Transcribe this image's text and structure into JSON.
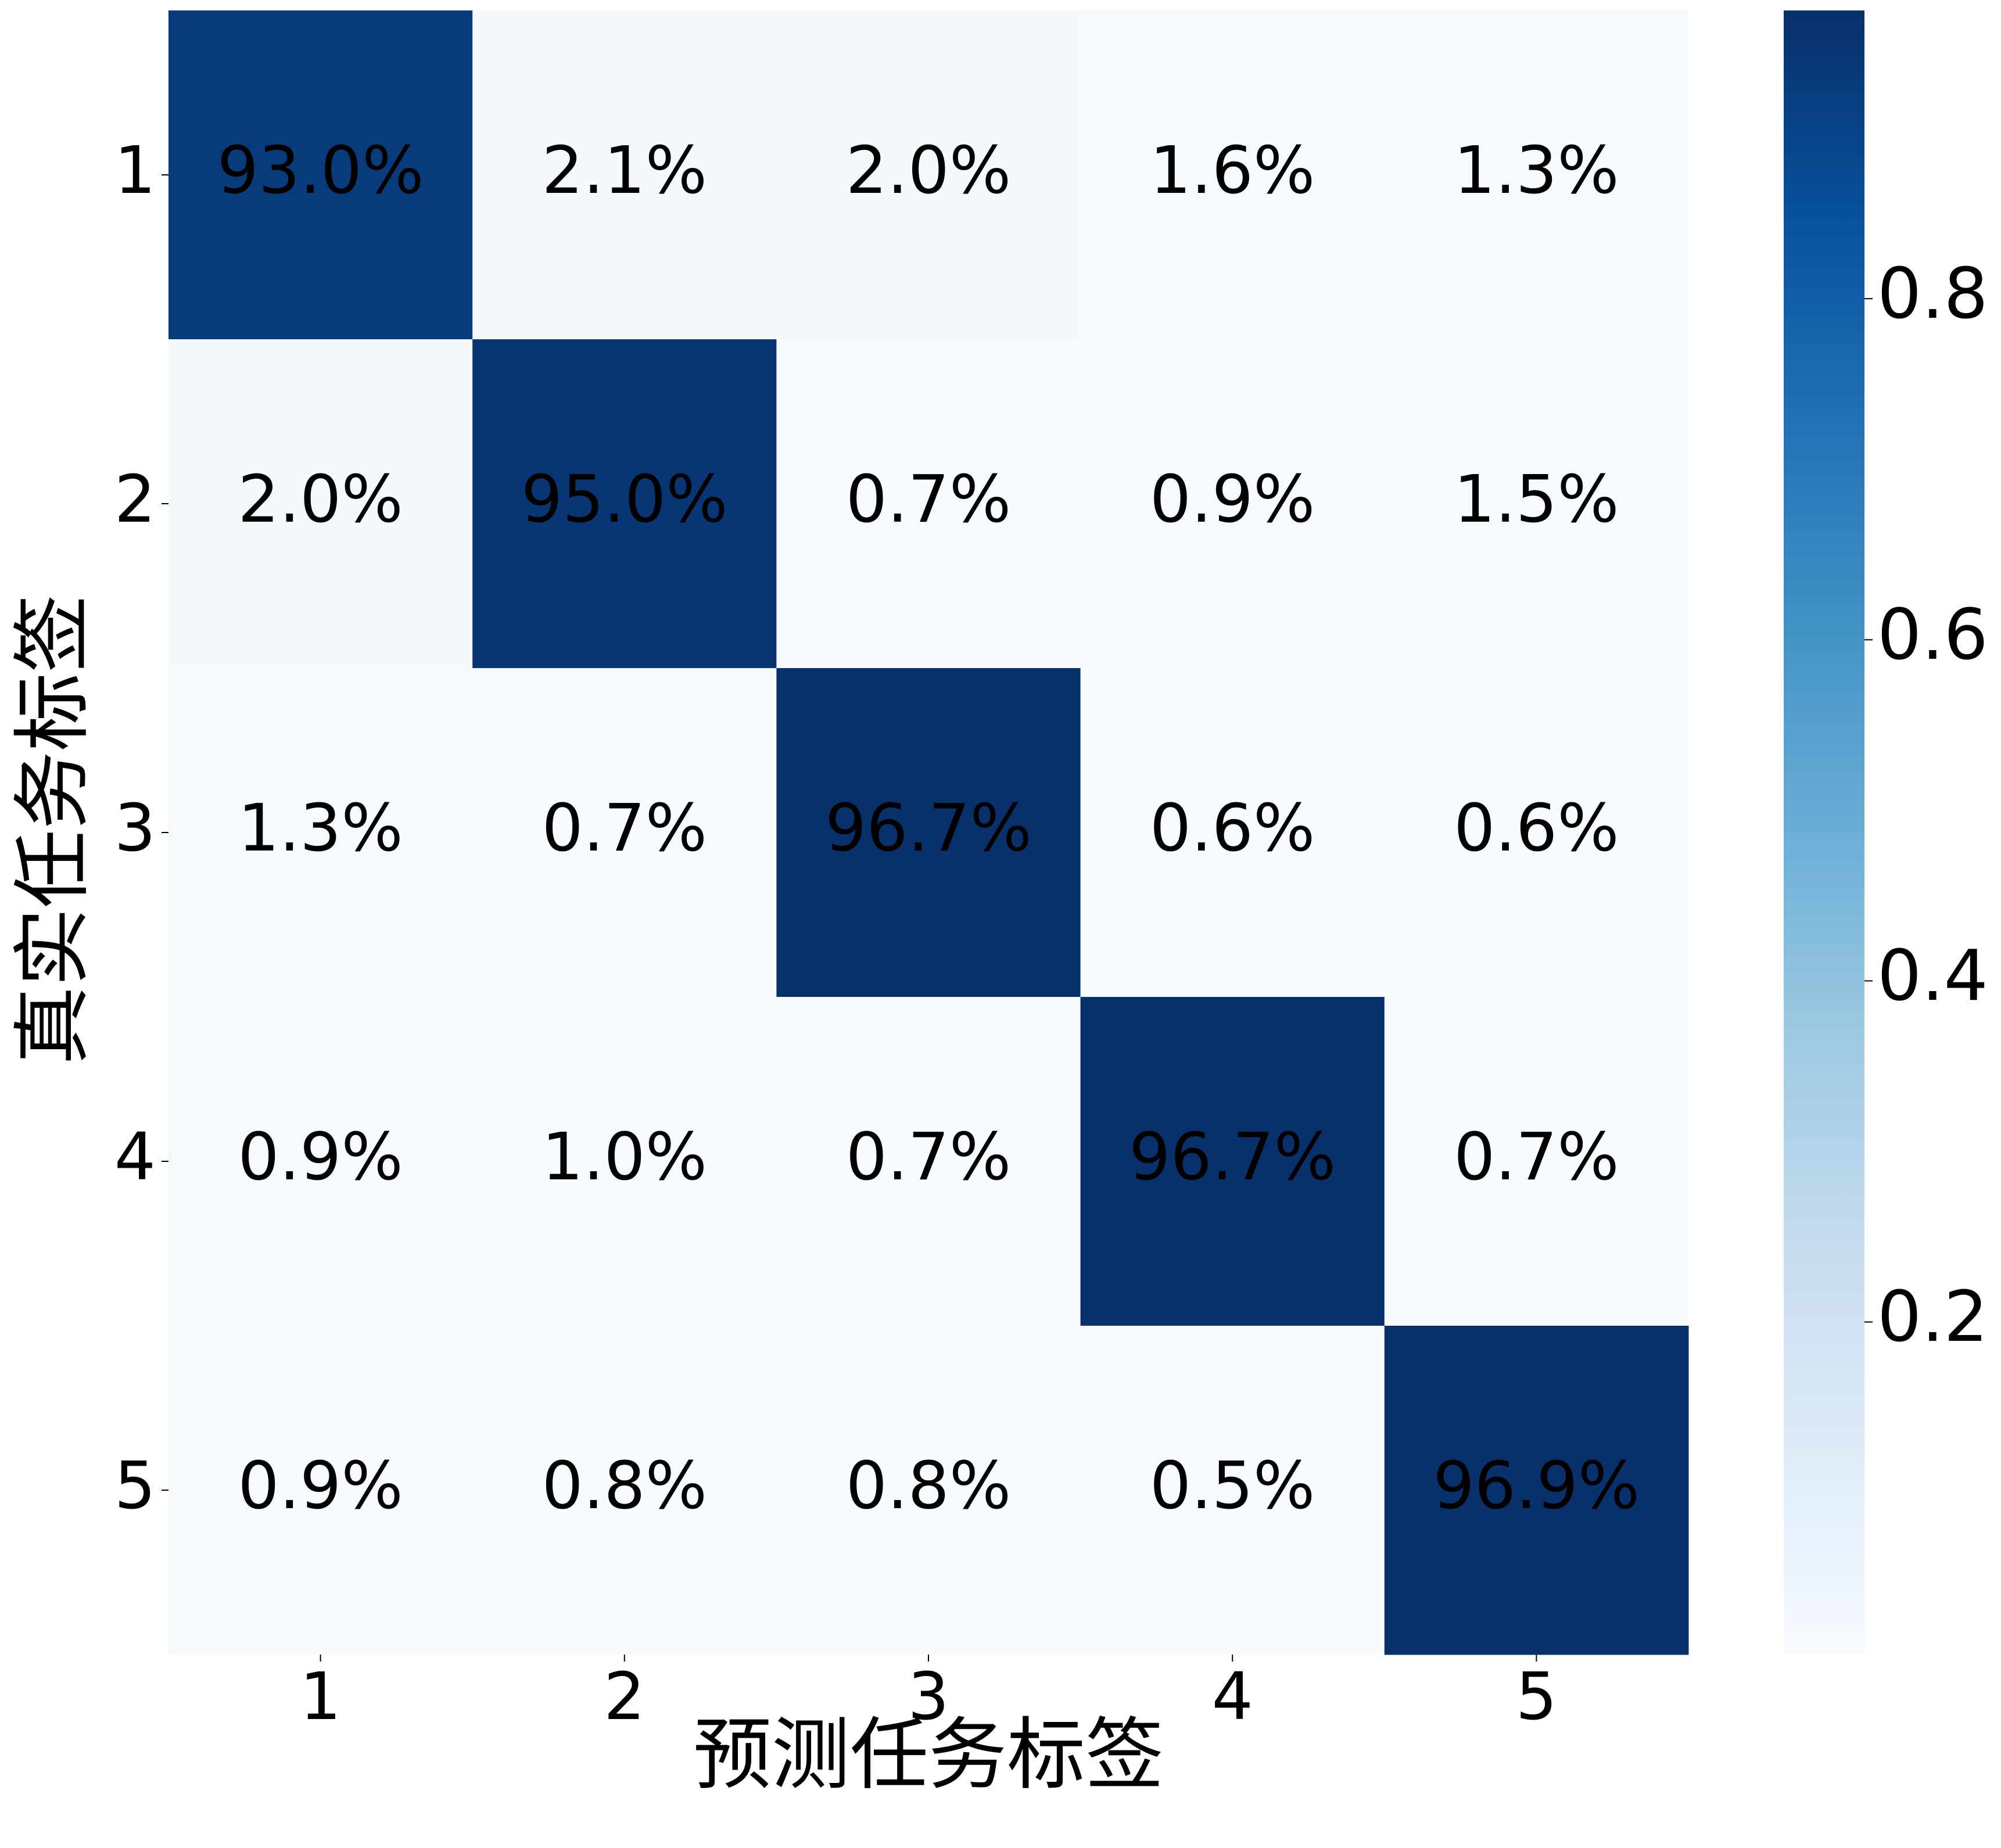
{
  "chart_data": {
    "type": "heatmap",
    "xlabel": "预测任务标签",
    "ylabel": "真实任务标签",
    "x_categories": [
      "1",
      "2",
      "3",
      "4",
      "5"
    ],
    "y_categories": [
      "1",
      "2",
      "3",
      "4",
      "5"
    ],
    "values": [
      [
        0.93,
        0.021,
        0.02,
        0.016,
        0.013
      ],
      [
        0.02,
        0.95,
        0.007,
        0.009,
        0.015
      ],
      [
        0.013,
        0.007,
        0.967,
        0.006,
        0.006
      ],
      [
        0.009,
        0.01,
        0.007,
        0.967,
        0.007
      ],
      [
        0.009,
        0.008,
        0.008,
        0.005,
        0.969
      ]
    ],
    "value_labels": [
      [
        "93.0%",
        "2.1%",
        "2.0%",
        "1.6%",
        "1.3%"
      ],
      [
        "2.0%",
        "95.0%",
        "0.7%",
        "0.9%",
        "1.5%"
      ],
      [
        "1.3%",
        "0.7%",
        "96.7%",
        "0.6%",
        "0.6%"
      ],
      [
        "0.9%",
        "1.0%",
        "0.7%",
        "96.7%",
        "0.7%"
      ],
      [
        "0.9%",
        "0.8%",
        "0.8%",
        "0.5%",
        "96.9%"
      ]
    ],
    "clim": [
      0.005,
      0.969
    ],
    "cticks": [
      0.2,
      0.4,
      0.6,
      0.8
    ],
    "colorscale": [
      "#f7fbff",
      "#deebf7",
      "#c6dbef",
      "#9ecae1",
      "#6baed6",
      "#4292c6",
      "#2171b5",
      "#08519c",
      "#08306b"
    ]
  }
}
